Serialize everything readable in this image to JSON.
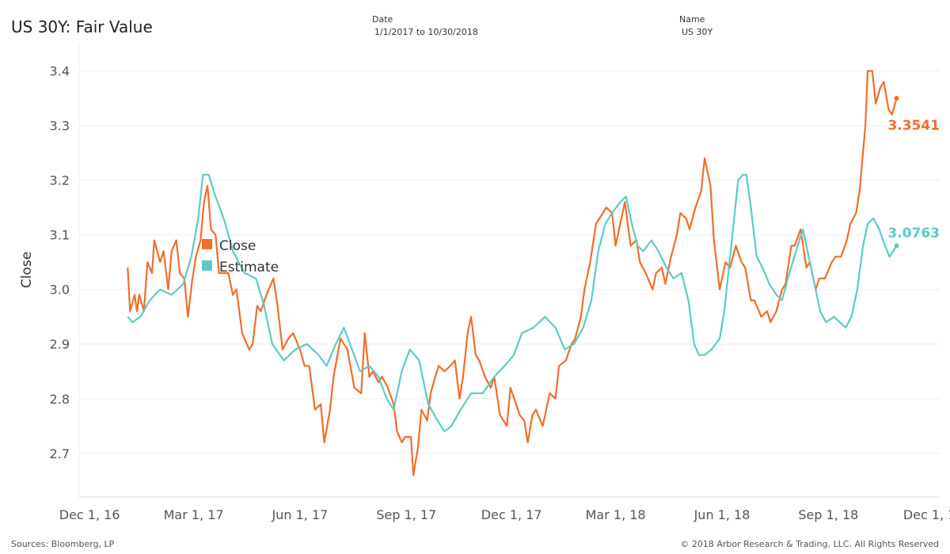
{
  "header": {
    "title": "US 30Y: Fair Value",
    "filters": [
      {
        "label": "Date",
        "value": "1/1/2017 to 10/30/2018"
      },
      {
        "label": "Name",
        "value": "US 30Y"
      }
    ]
  },
  "footer": {
    "sources": "Sources: Bloomberg, LP",
    "copyright": "© 2018 Arbor Research & Trading, LLC. All Rights Reserved"
  },
  "colors": {
    "close": "#f26d2b",
    "estimate": "#5ccbc7",
    "grid": "#eeeeee"
  },
  "chart_data": {
    "type": "line",
    "title": "US 30Y: Fair Value",
    "xlabel": "",
    "ylabel": "Close",
    "ylim": [
      2.62,
      3.44
    ],
    "y_ticks": [
      2.7,
      2.8,
      2.9,
      3.0,
      3.1,
      3.2,
      3.3,
      3.4
    ],
    "y_tick_labels": [
      "2.7",
      "2.8",
      "2.9",
      "3.0",
      "3.1",
      "3.2",
      "3.3",
      "3.4"
    ],
    "xlim": [
      "2016-11-22",
      "2018-12-07"
    ],
    "x_ticks": [
      "2016-12-01",
      "2017-03-01",
      "2017-06-01",
      "2017-09-01",
      "2017-12-01",
      "2018-03-01",
      "2018-06-01",
      "2018-09-01",
      "2018-12-01"
    ],
    "x_tick_labels": [
      "Dec 1, 16",
      "Mar 1, 17",
      "Jun 1, 17",
      "Sep 1, 17",
      "Dec 1, 17",
      "Mar 1, 18",
      "Jun 1, 18",
      "Sep 1, 18",
      "Dec 1, 18"
    ],
    "grid": true,
    "legend": {
      "position": "upper-left, inside plot",
      "entries": [
        "Close",
        "Estimate"
      ]
    },
    "end_labels": [
      "3.3541",
      "3.0763"
    ],
    "series": [
      {
        "name": "Close",
        "color": "#f26d2b",
        "points": [
          [
            "2017-01-03",
            3.04
          ],
          [
            "2017-01-05",
            2.96
          ],
          [
            "2017-01-09",
            2.99
          ],
          [
            "2017-01-11",
            2.96
          ],
          [
            "2017-01-13",
            2.99
          ],
          [
            "2017-01-17",
            2.96
          ],
          [
            "2017-01-20",
            3.05
          ],
          [
            "2017-01-24",
            3.03
          ],
          [
            "2017-01-26",
            3.09
          ],
          [
            "2017-01-31",
            3.05
          ],
          [
            "2017-02-03",
            3.07
          ],
          [
            "2017-02-07",
            3.0
          ],
          [
            "2017-02-10",
            3.07
          ],
          [
            "2017-02-14",
            3.09
          ],
          [
            "2017-02-17",
            3.03
          ],
          [
            "2017-02-21",
            3.02
          ],
          [
            "2017-02-24",
            2.95
          ],
          [
            "2017-02-28",
            3.02
          ],
          [
            "2017-03-03",
            3.06
          ],
          [
            "2017-03-07",
            3.09
          ],
          [
            "2017-03-10",
            3.16
          ],
          [
            "2017-03-13",
            3.19
          ],
          [
            "2017-03-16",
            3.11
          ],
          [
            "2017-03-20",
            3.1
          ],
          [
            "2017-03-23",
            3.03
          ],
          [
            "2017-03-28",
            3.03
          ],
          [
            "2017-03-31",
            3.03
          ],
          [
            "2017-04-04",
            2.99
          ],
          [
            "2017-04-07",
            3.0
          ],
          [
            "2017-04-12",
            2.92
          ],
          [
            "2017-04-18",
            2.89
          ],
          [
            "2017-04-21",
            2.9
          ],
          [
            "2017-04-25",
            2.97
          ],
          [
            "2017-04-28",
            2.96
          ],
          [
            "2017-05-03",
            2.99
          ],
          [
            "2017-05-09",
            3.02
          ],
          [
            "2017-05-12",
            2.98
          ],
          [
            "2017-05-17",
            2.89
          ],
          [
            "2017-05-22",
            2.91
          ],
          [
            "2017-05-26",
            2.92
          ],
          [
            "2017-06-01",
            2.89
          ],
          [
            "2017-06-05",
            2.86
          ],
          [
            "2017-06-09",
            2.86
          ],
          [
            "2017-06-14",
            2.78
          ],
          [
            "2017-06-19",
            2.79
          ],
          [
            "2017-06-22",
            2.72
          ],
          [
            "2017-06-27",
            2.78
          ],
          [
            "2017-06-30",
            2.84
          ],
          [
            "2017-07-06",
            2.91
          ],
          [
            "2017-07-12",
            2.89
          ],
          [
            "2017-07-18",
            2.82
          ],
          [
            "2017-07-24",
            2.81
          ],
          [
            "2017-07-27",
            2.92
          ],
          [
            "2017-07-31",
            2.84
          ],
          [
            "2017-08-03",
            2.85
          ],
          [
            "2017-08-08",
            2.83
          ],
          [
            "2017-08-11",
            2.84
          ],
          [
            "2017-08-16",
            2.82
          ],
          [
            "2017-08-21",
            2.79
          ],
          [
            "2017-08-24",
            2.74
          ],
          [
            "2017-08-28",
            2.72
          ],
          [
            "2017-08-31",
            2.73
          ],
          [
            "2017-09-05",
            2.73
          ],
          [
            "2017-09-07",
            2.66
          ],
          [
            "2017-09-11",
            2.71
          ],
          [
            "2017-09-14",
            2.78
          ],
          [
            "2017-09-19",
            2.76
          ],
          [
            "2017-09-22",
            2.81
          ],
          [
            "2017-09-26",
            2.84
          ],
          [
            "2017-09-29",
            2.86
          ],
          [
            "2017-10-04",
            2.85
          ],
          [
            "2017-10-09",
            2.86
          ],
          [
            "2017-10-13",
            2.87
          ],
          [
            "2017-10-17",
            2.8
          ],
          [
            "2017-10-20",
            2.84
          ],
          [
            "2017-10-24",
            2.92
          ],
          [
            "2017-10-27",
            2.95
          ],
          [
            "2017-10-31",
            2.88
          ],
          [
            "2017-11-03",
            2.87
          ],
          [
            "2017-11-08",
            2.84
          ],
          [
            "2017-11-13",
            2.82
          ],
          [
            "2017-11-16",
            2.84
          ],
          [
            "2017-11-21",
            2.77
          ],
          [
            "2017-11-27",
            2.75
          ],
          [
            "2017-11-30",
            2.82
          ],
          [
            "2017-12-05",
            2.79
          ],
          [
            "2017-12-08",
            2.77
          ],
          [
            "2017-12-12",
            2.76
          ],
          [
            "2017-12-15",
            2.72
          ],
          [
            "2017-12-19",
            2.77
          ],
          [
            "2017-12-22",
            2.78
          ],
          [
            "2017-12-28",
            2.75
          ],
          [
            "2018-01-03",
            2.81
          ],
          [
            "2018-01-08",
            2.8
          ],
          [
            "2018-01-11",
            2.86
          ],
          [
            "2018-01-17",
            2.87
          ],
          [
            "2018-01-22",
            2.9
          ],
          [
            "2018-01-25",
            2.91
          ],
          [
            "2018-01-30",
            2.95
          ],
          [
            "2018-02-02",
            3.0
          ],
          [
            "2018-02-07",
            3.05
          ],
          [
            "2018-02-12",
            3.12
          ],
          [
            "2018-02-15",
            3.13
          ],
          [
            "2018-02-21",
            3.15
          ],
          [
            "2018-02-26",
            3.14
          ],
          [
            "2018-03-01",
            3.08
          ],
          [
            "2018-03-06",
            3.13
          ],
          [
            "2018-03-09",
            3.16
          ],
          [
            "2018-03-14",
            3.08
          ],
          [
            "2018-03-19",
            3.09
          ],
          [
            "2018-03-22",
            3.05
          ],
          [
            "2018-03-27",
            3.03
          ],
          [
            "2018-04-02",
            3.0
          ],
          [
            "2018-04-05",
            3.03
          ],
          [
            "2018-04-10",
            3.04
          ],
          [
            "2018-04-13",
            3.01
          ],
          [
            "2018-04-18",
            3.06
          ],
          [
            "2018-04-23",
            3.1
          ],
          [
            "2018-04-26",
            3.14
          ],
          [
            "2018-05-01",
            3.13
          ],
          [
            "2018-05-04",
            3.11
          ],
          [
            "2018-05-09",
            3.15
          ],
          [
            "2018-05-14",
            3.18
          ],
          [
            "2018-05-17",
            3.24
          ],
          [
            "2018-05-22",
            3.19
          ],
          [
            "2018-05-25",
            3.09
          ],
          [
            "2018-05-30",
            3.0
          ],
          [
            "2018-06-04",
            3.05
          ],
          [
            "2018-06-08",
            3.04
          ],
          [
            "2018-06-13",
            3.08
          ],
          [
            "2018-06-18",
            3.05
          ],
          [
            "2018-06-21",
            3.04
          ],
          [
            "2018-06-26",
            2.98
          ],
          [
            "2018-06-29",
            2.98
          ],
          [
            "2018-07-05",
            2.95
          ],
          [
            "2018-07-10",
            2.96
          ],
          [
            "2018-07-13",
            2.94
          ],
          [
            "2018-07-18",
            2.96
          ],
          [
            "2018-07-23",
            3.0
          ],
          [
            "2018-07-26",
            3.01
          ],
          [
            "2018-07-31",
            3.08
          ],
          [
            "2018-08-03",
            3.08
          ],
          [
            "2018-08-08",
            3.11
          ],
          [
            "2018-08-13",
            3.04
          ],
          [
            "2018-08-16",
            3.05
          ],
          [
            "2018-08-21",
            3.0
          ],
          [
            "2018-08-24",
            3.02
          ],
          [
            "2018-08-29",
            3.02
          ],
          [
            "2018-09-04",
            3.05
          ],
          [
            "2018-09-07",
            3.06
          ],
          [
            "2018-09-12",
            3.06
          ],
          [
            "2018-09-17",
            3.09
          ],
          [
            "2018-09-20",
            3.12
          ],
          [
            "2018-09-25",
            3.14
          ],
          [
            "2018-09-28",
            3.18
          ],
          [
            "2018-10-03",
            3.3
          ],
          [
            "2018-10-05",
            3.4
          ],
          [
            "2018-10-09",
            3.4
          ],
          [
            "2018-10-12",
            3.34
          ],
          [
            "2018-10-16",
            3.37
          ],
          [
            "2018-10-19",
            3.38
          ],
          [
            "2018-10-23",
            3.33
          ],
          [
            "2018-10-26",
            3.32
          ],
          [
            "2018-10-30",
            3.35
          ]
        ]
      },
      {
        "name": "Estimate",
        "color": "#5ccbc7",
        "points": [
          [
            "2017-01-03",
            2.95
          ],
          [
            "2017-01-07",
            2.94
          ],
          [
            "2017-01-14",
            2.95
          ],
          [
            "2017-01-22",
            2.98
          ],
          [
            "2017-01-31",
            3.0
          ],
          [
            "2017-02-10",
            2.99
          ],
          [
            "2017-02-20",
            3.01
          ],
          [
            "2017-02-27",
            3.06
          ],
          [
            "2017-03-05",
            3.13
          ],
          [
            "2017-03-09",
            3.21
          ],
          [
            "2017-03-14",
            3.21
          ],
          [
            "2017-03-20",
            3.17
          ],
          [
            "2017-03-27",
            3.13
          ],
          [
            "2017-04-04",
            3.07
          ],
          [
            "2017-04-14",
            3.03
          ],
          [
            "2017-04-24",
            3.02
          ],
          [
            "2017-05-01",
            2.97
          ],
          [
            "2017-05-08",
            2.9
          ],
          [
            "2017-05-18",
            2.87
          ],
          [
            "2017-05-28",
            2.89
          ],
          [
            "2017-06-07",
            2.9
          ],
          [
            "2017-06-17",
            2.88
          ],
          [
            "2017-06-24",
            2.86
          ],
          [
            "2017-07-02",
            2.9
          ],
          [
            "2017-07-09",
            2.93
          ],
          [
            "2017-07-16",
            2.89
          ],
          [
            "2017-07-23",
            2.85
          ],
          [
            "2017-07-31",
            2.86
          ],
          [
            "2017-08-08",
            2.84
          ],
          [
            "2017-08-15",
            2.8
          ],
          [
            "2017-08-21",
            2.78
          ],
          [
            "2017-08-28",
            2.85
          ],
          [
            "2017-09-04",
            2.89
          ],
          [
            "2017-09-12",
            2.87
          ],
          [
            "2017-09-20",
            2.79
          ],
          [
            "2017-09-28",
            2.76
          ],
          [
            "2017-10-04",
            2.74
          ],
          [
            "2017-10-10",
            2.75
          ],
          [
            "2017-10-18",
            2.78
          ],
          [
            "2017-10-27",
            2.81
          ],
          [
            "2017-11-06",
            2.81
          ],
          [
            "2017-11-16",
            2.84
          ],
          [
            "2017-11-25",
            2.86
          ],
          [
            "2017-12-03",
            2.88
          ],
          [
            "2017-12-10",
            2.92
          ],
          [
            "2017-12-20",
            2.93
          ],
          [
            "2017-12-30",
            2.95
          ],
          [
            "2018-01-08",
            2.93
          ],
          [
            "2018-01-16",
            2.89
          ],
          [
            "2018-01-24",
            2.9
          ],
          [
            "2018-02-01",
            2.93
          ],
          [
            "2018-02-08",
            2.98
          ],
          [
            "2018-02-14",
            3.07
          ],
          [
            "2018-02-20",
            3.12
          ],
          [
            "2018-02-26",
            3.14
          ],
          [
            "2018-03-05",
            3.16
          ],
          [
            "2018-03-10",
            3.17
          ],
          [
            "2018-03-15",
            3.12
          ],
          [
            "2018-03-20",
            3.08
          ],
          [
            "2018-03-25",
            3.07
          ],
          [
            "2018-04-01",
            3.09
          ],
          [
            "2018-04-07",
            3.07
          ],
          [
            "2018-04-14",
            3.04
          ],
          [
            "2018-04-20",
            3.02
          ],
          [
            "2018-04-27",
            3.03
          ],
          [
            "2018-05-03",
            2.98
          ],
          [
            "2018-05-08",
            2.9
          ],
          [
            "2018-05-12",
            2.88
          ],
          [
            "2018-05-17",
            2.88
          ],
          [
            "2018-05-23",
            2.89
          ],
          [
            "2018-05-30",
            2.91
          ],
          [
            "2018-06-03",
            2.96
          ],
          [
            "2018-06-07",
            3.04
          ],
          [
            "2018-06-11",
            3.12
          ],
          [
            "2018-06-15",
            3.2
          ],
          [
            "2018-06-19",
            3.21
          ],
          [
            "2018-06-22",
            3.21
          ],
          [
            "2018-06-26",
            3.15
          ],
          [
            "2018-07-01",
            3.06
          ],
          [
            "2018-07-06",
            3.04
          ],
          [
            "2018-07-12",
            3.01
          ],
          [
            "2018-07-18",
            2.99
          ],
          [
            "2018-07-23",
            2.98
          ],
          [
            "2018-07-28",
            3.02
          ],
          [
            "2018-08-04",
            3.07
          ],
          [
            "2018-08-10",
            3.11
          ],
          [
            "2018-08-15",
            3.06
          ],
          [
            "2018-08-20",
            3.01
          ],
          [
            "2018-08-25",
            2.96
          ],
          [
            "2018-08-30",
            2.94
          ],
          [
            "2018-09-06",
            2.95
          ],
          [
            "2018-09-11",
            2.94
          ],
          [
            "2018-09-16",
            2.93
          ],
          [
            "2018-09-21",
            2.95
          ],
          [
            "2018-09-26",
            3.0
          ],
          [
            "2018-10-01",
            3.08
          ],
          [
            "2018-10-05",
            3.12
          ],
          [
            "2018-10-10",
            3.13
          ],
          [
            "2018-10-15",
            3.11
          ],
          [
            "2018-10-20",
            3.08
          ],
          [
            "2018-10-24",
            3.06
          ],
          [
            "2018-10-27",
            3.07
          ],
          [
            "2018-10-30",
            3.08
          ]
        ]
      }
    ]
  }
}
